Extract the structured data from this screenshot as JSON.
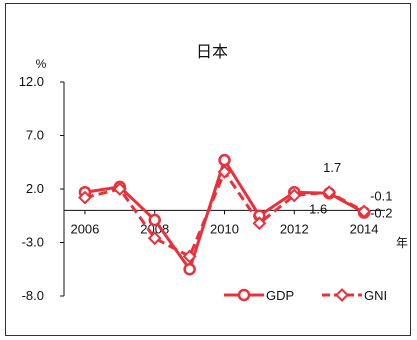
{
  "chart_data": {
    "type": "line",
    "title": "日本",
    "y_unit": "%",
    "x_unit": "年",
    "ylim": [
      -8.0,
      12.0
    ],
    "y_ticks": [
      "12.0",
      "7.0",
      "2.0",
      "-3.0",
      "-8.0"
    ],
    "y_tick_values": [
      12.0,
      7.0,
      2.0,
      -3.0,
      -8.0
    ],
    "x_ticks": [
      "2006",
      "2008",
      "2010",
      "2012",
      "2014"
    ],
    "x_tick_values": [
      2006,
      2008,
      2010,
      2012,
      2014
    ],
    "x": [
      2006,
      2007,
      2008,
      2009,
      2010,
      2011,
      2012,
      2013,
      2014
    ],
    "series": [
      {
        "name": "GDP",
        "style": "solid",
        "marker": "circle",
        "color": "#e8313a",
        "values": [
          1.7,
          2.2,
          -0.9,
          -5.5,
          4.7,
          -0.5,
          1.7,
          1.6,
          -0.2
        ]
      },
      {
        "name": "GNI",
        "style": "dashed",
        "marker": "diamond",
        "color": "#e8313a",
        "values": [
          1.2,
          2.0,
          -2.6,
          -4.3,
          3.6,
          -1.2,
          1.4,
          1.7,
          -0.1
        ]
      }
    ],
    "annotations": [
      {
        "text": "1.7",
        "x": 2013,
        "y": 1.7
      },
      {
        "text": "1.6",
        "x": 2013,
        "y": 1.6
      },
      {
        "text": "-0.1",
        "x": 2014,
        "y": -0.1
      },
      {
        "text": "-0.2",
        "x": 2014,
        "y": -0.2
      }
    ],
    "legend_position": "bottom-right",
    "grid": false
  }
}
